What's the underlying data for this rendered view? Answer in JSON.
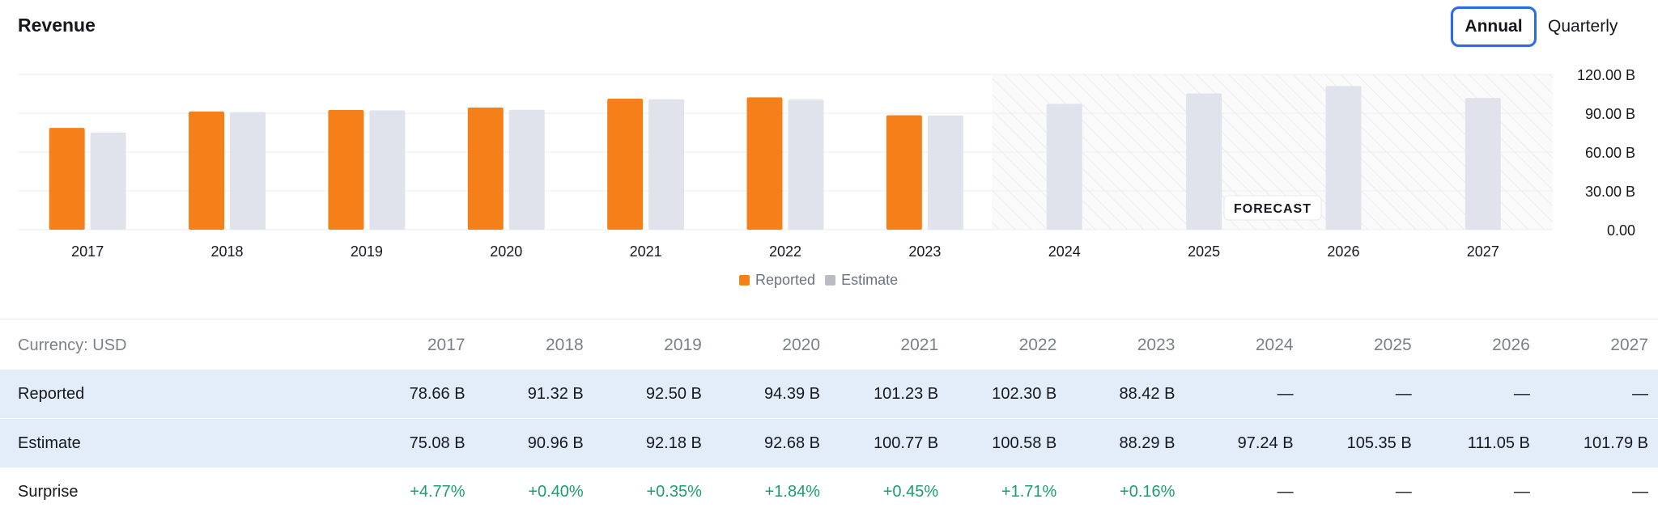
{
  "header": {
    "title": "Revenue",
    "toggle": {
      "annual_label": "Annual",
      "quarterly_label": "Quarterly",
      "selected": "Annual"
    }
  },
  "colors": {
    "reported": "#f5801a",
    "estimate": "#e1e3ec",
    "accent": "#2f6ae6",
    "positive": "#1a9e6e"
  },
  "chart_data": {
    "type": "bar",
    "categories": [
      "2017",
      "2018",
      "2019",
      "2020",
      "2021",
      "2022",
      "2023",
      "2024",
      "2025",
      "2026",
      "2027"
    ],
    "series": [
      {
        "name": "Reported",
        "values": [
          78.66,
          91.32,
          92.5,
          94.39,
          101.23,
          102.3,
          88.42,
          null,
          null,
          null,
          null
        ]
      },
      {
        "name": "Estimate",
        "values": [
          75.08,
          90.96,
          92.18,
          92.68,
          100.77,
          100.58,
          88.29,
          97.24,
          105.35,
          111.05,
          101.79
        ]
      }
    ],
    "ylim": [
      0,
      120
    ],
    "yticks": [
      "120.00 B",
      "90.00 B",
      "60.00 B",
      "30.00 B",
      "0.00"
    ],
    "forecast_label": "FORECAST",
    "forecast_start": "2024",
    "grid": true,
    "legend": "bottom-center"
  },
  "table": {
    "currency_label": "Currency: USD",
    "years": [
      "2017",
      "2018",
      "2019",
      "2020",
      "2021",
      "2022",
      "2023",
      "2024",
      "2025",
      "2026",
      "2027"
    ],
    "rows": [
      {
        "label": "Reported",
        "values": [
          "78.66 B",
          "91.32 B",
          "92.50 B",
          "94.39 B",
          "101.23 B",
          "102.30 B",
          "88.42 B",
          "—",
          "—",
          "—",
          "—"
        ]
      },
      {
        "label": "Estimate",
        "values": [
          "75.08 B",
          "90.96 B",
          "92.18 B",
          "92.68 B",
          "100.77 B",
          "100.58 B",
          "88.29 B",
          "97.24 B",
          "105.35 B",
          "111.05 B",
          "101.79 B"
        ]
      },
      {
        "label": "Surprise",
        "values": [
          "+4.77%",
          "+0.40%",
          "+0.35%",
          "+1.84%",
          "+0.45%",
          "+1.71%",
          "+0.16%",
          "—",
          "—",
          "—",
          "—"
        ]
      }
    ]
  }
}
